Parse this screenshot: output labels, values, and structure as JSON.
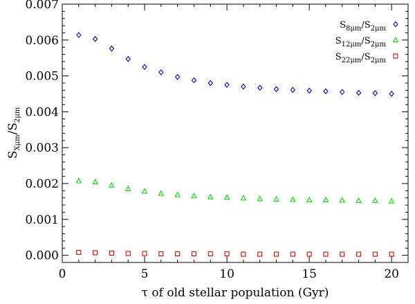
{
  "chart_data": {
    "type": "scatter",
    "xlabel": "τ of old stellar population (Gyr)",
    "ylabel": {
      "base": "S",
      "num_sub": "Xμm",
      "sep": "/",
      "den_base": "S",
      "den_sub": "2μm"
    },
    "xlim": [
      0,
      21
    ],
    "ylim": [
      -0.0002,
      0.007
    ],
    "xticks": [
      0,
      5,
      10,
      15,
      20
    ],
    "xtick_labels": [
      "0",
      "5",
      "10",
      "15",
      "20"
    ],
    "yticks": [
      0.0,
      0.001,
      0.002,
      0.003,
      0.004,
      0.005,
      0.006,
      0.007
    ],
    "ytick_labels": [
      "0.000",
      "0.001",
      "0.002",
      "0.003",
      "0.004",
      "0.005",
      "0.006",
      "0.007"
    ],
    "grid": false,
    "legend_position": "top-right",
    "x": [
      1,
      2,
      3,
      4,
      5,
      6,
      7,
      8,
      9,
      10,
      11,
      12,
      13,
      14,
      15,
      16,
      17,
      18,
      19,
      20
    ],
    "series": [
      {
        "name": {
          "base": "S",
          "num_sub": "8μm",
          "sep": "/",
          "den_base": "S",
          "den_sub": "2μm"
        },
        "marker": "diamond",
        "color": "#0000cc",
        "values": [
          0.00614,
          0.00603,
          0.00576,
          0.00547,
          0.00525,
          0.0051,
          0.00497,
          0.00488,
          0.0048,
          0.00475,
          0.0047,
          0.00467,
          0.00463,
          0.00461,
          0.00459,
          0.00457,
          0.00455,
          0.00453,
          0.00452,
          0.0045
        ]
      },
      {
        "name": {
          "base": "S",
          "num_sub": "12μm",
          "sep": "/",
          "den_base": "S",
          "den_sub": "2μm"
        },
        "marker": "triangle",
        "color": "#00dd00",
        "values": [
          0.00207,
          0.00204,
          0.00195,
          0.00185,
          0.00178,
          0.00172,
          0.00168,
          0.00165,
          0.00162,
          0.00161,
          0.00159,
          0.00157,
          0.00156,
          0.00155,
          0.00154,
          0.00154,
          0.00153,
          0.00152,
          0.00152,
          0.00151
        ]
      },
      {
        "name": {
          "base": "S",
          "num_sub": "22μm",
          "sep": "/",
          "den_base": "S",
          "den_sub": "2μm"
        },
        "marker": "square",
        "color": "#dd0000",
        "values": [
          8e-05,
          7e-05,
          6e-05,
          5e-05,
          5e-05,
          4e-05,
          4e-05,
          4e-05,
          4e-05,
          4e-05,
          3e-05,
          3e-05,
          3e-05,
          3e-05,
          3e-05,
          3e-05,
          3e-05,
          3e-05,
          3e-05,
          3e-05
        ]
      }
    ]
  }
}
